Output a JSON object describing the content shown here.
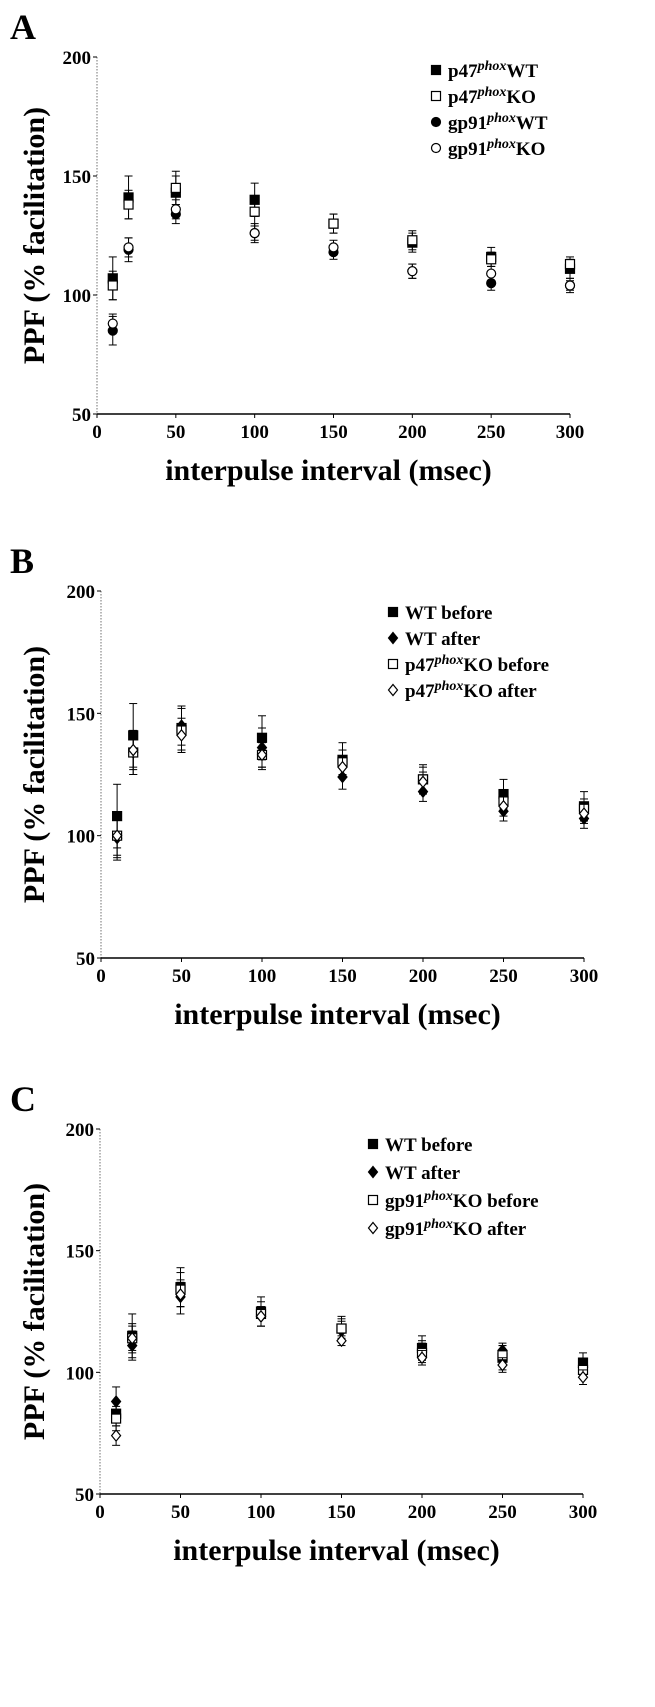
{
  "chart_data": [
    {
      "type": "scatter",
      "panel_label": "A",
      "xlabel": "interpulse interval (msec)",
      "ylabel": "PPF (% facilitation)",
      "xlim": [
        0,
        300
      ],
      "ylim": [
        50,
        200
      ],
      "xticks": [
        0,
        50,
        100,
        150,
        200,
        250,
        300
      ],
      "yticks": [
        50,
        100,
        150,
        200
      ],
      "legend": "upper right",
      "series": [
        {
          "name": [
            "p47",
            "phox",
            "WT"
          ],
          "color": "#000000",
          "marker": "square",
          "filled": true,
          "x": [
            10,
            20,
            50,
            100,
            150,
            200,
            250,
            300
          ],
          "values": [
            107,
            141,
            143,
            140,
            130,
            122,
            116,
            111
          ],
          "errors": [
            9,
            9,
            7,
            7,
            4,
            4,
            4,
            4
          ]
        },
        {
          "name": [
            "p47",
            "phox",
            "KO"
          ],
          "color": "#000000",
          "marker": "square",
          "filled": false,
          "x": [
            10,
            20,
            50,
            100,
            150,
            200,
            250,
            300
          ],
          "values": [
            104,
            138,
            145,
            135,
            130,
            123,
            115,
            113
          ],
          "errors": [
            6,
            6,
            7,
            6,
            4,
            4,
            3,
            3
          ]
        },
        {
          "name": [
            "gp91",
            "phox",
            "WT"
          ],
          "color": "#000000",
          "marker": "circle",
          "filled": true,
          "x": [
            10,
            20,
            50,
            100,
            150,
            200,
            250,
            300
          ],
          "values": [
            85,
            119,
            134,
            126,
            118,
            110,
            105,
            104
          ],
          "errors": [
            6,
            5,
            4,
            4,
            3,
            3,
            3,
            2
          ]
        },
        {
          "name": [
            "gp91",
            "phox",
            "KO"
          ],
          "color": "#000000",
          "marker": "circle",
          "filled": false,
          "x": [
            10,
            20,
            50,
            100,
            150,
            200,
            250,
            300
          ],
          "values": [
            88,
            120,
            136,
            126,
            120,
            110,
            109,
            104
          ],
          "errors": [
            4,
            4,
            4,
            3,
            3,
            3,
            3,
            3
          ]
        }
      ]
    },
    {
      "type": "scatter",
      "panel_label": "B",
      "xlabel": "interpulse interval (msec)",
      "ylabel": "PPF (% facilitation)",
      "xlim": [
        0,
        300
      ],
      "ylim": [
        50,
        200
      ],
      "xticks": [
        0,
        50,
        100,
        150,
        200,
        250,
        300
      ],
      "yticks": [
        50,
        100,
        150,
        200
      ],
      "legend": "upper right",
      "series": [
        {
          "name": [
            "WT before"
          ],
          "color": "#000000",
          "marker": "square",
          "filled": true,
          "x": [
            10,
            20,
            50,
            100,
            150,
            200,
            250,
            300
          ],
          "values": [
            108,
            141,
            144,
            140,
            131,
            123,
            117,
            112
          ],
          "errors": [
            13,
            13,
            9,
            9,
            7,
            6,
            6,
            6
          ]
        },
        {
          "name": [
            "WT after"
          ],
          "color": "#000000",
          "marker": "diamond",
          "filled": true,
          "x": [
            10,
            20,
            50,
            100,
            150,
            200,
            250,
            300
          ],
          "values": [
            99,
            134,
            145,
            136,
            124,
            118,
            110,
            107
          ],
          "errors": [
            9,
            9,
            8,
            8,
            5,
            4,
            4,
            4
          ]
        },
        {
          "name": [
            "p47",
            "phox",
            "KO before"
          ],
          "color": "#000000",
          "marker": "square",
          "filled": false,
          "x": [
            10,
            20,
            50,
            100,
            150,
            200,
            250,
            300
          ],
          "values": [
            100,
            134,
            143,
            133,
            130,
            123,
            114,
            111
          ],
          "errors": [
            9,
            9,
            9,
            6,
            5,
            5,
            4,
            4
          ]
        },
        {
          "name": [
            "p47",
            "phox",
            "KO after"
          ],
          "color": "#000000",
          "marker": "diamond",
          "filled": false,
          "x": [
            10,
            20,
            50,
            100,
            150,
            200,
            250,
            300
          ],
          "values": [
            100,
            135,
            141,
            133,
            128,
            122,
            112,
            109
          ],
          "errors": [
            8,
            8,
            7,
            5,
            4,
            4,
            4,
            4
          ]
        }
      ]
    },
    {
      "type": "scatter",
      "panel_label": "C",
      "xlabel": "interpulse interval (msec)",
      "ylabel": "PPF (% facilitation)",
      "xlim": [
        0,
        300
      ],
      "ylim": [
        50,
        200
      ],
      "xticks": [
        0,
        50,
        100,
        150,
        200,
        250,
        300
      ],
      "yticks": [
        50,
        100,
        150,
        200
      ],
      "legend": "upper right",
      "series": [
        {
          "name": [
            "WT before"
          ],
          "color": "#000000",
          "marker": "square",
          "filled": true,
          "x": [
            10,
            20,
            50,
            100,
            150,
            200,
            250,
            300
          ],
          "values": [
            83,
            115,
            135,
            125,
            118,
            110,
            106,
            104
          ],
          "errors": [
            5,
            9,
            8,
            6,
            5,
            5,
            5,
            4
          ]
        },
        {
          "name": [
            "WT after"
          ],
          "color": "#000000",
          "marker": "diamond",
          "filled": true,
          "x": [
            10,
            20,
            50,
            100,
            150,
            200,
            250,
            300
          ],
          "values": [
            88,
            111,
            131,
            123,
            117,
            109,
            109,
            102
          ],
          "errors": [
            6,
            6,
            7,
            4,
            4,
            4,
            3,
            3
          ]
        },
        {
          "name": [
            "gp91",
            "phox",
            "KO before"
          ],
          "color": "#000000",
          "marker": "square",
          "filled": false,
          "x": [
            10,
            20,
            50,
            100,
            150,
            200,
            250,
            300
          ],
          "values": [
            81,
            114,
            134,
            124,
            118,
            108,
            107,
            101
          ],
          "errors": [
            5,
            6,
            7,
            5,
            4,
            4,
            4,
            3
          ]
        },
        {
          "name": [
            "gp91",
            "phox",
            "KO after"
          ],
          "color": "#000000",
          "marker": "diamond",
          "filled": false,
          "x": [
            10,
            20,
            50,
            100,
            150,
            200,
            250,
            300
          ],
          "values": [
            74,
            114,
            132,
            123,
            113,
            106,
            103,
            98
          ],
          "errors": [
            4,
            5,
            5,
            4,
            2,
            3,
            3,
            3
          ]
        }
      ]
    }
  ]
}
